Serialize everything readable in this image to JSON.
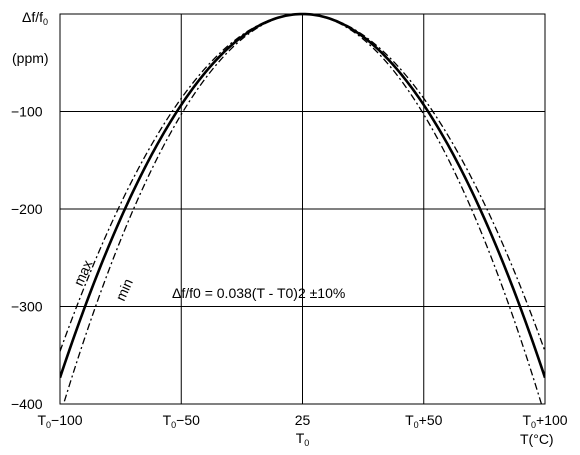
{
  "chart_data": {
    "type": "line",
    "title": "",
    "ylabel_top": "Δf/f",
    "ylabel_top_sub": "0",
    "ylabel_unit": "(ppm)",
    "xlabel": "T(°C)",
    "xlim": [
      -100,
      100
    ],
    "ylim": [
      -400,
      0
    ],
    "grid": true,
    "y_ticks": [
      {
        "value": -100,
        "label": "−100"
      },
      {
        "value": -200,
        "label": "−200"
      },
      {
        "value": -300,
        "label": "−300"
      },
      {
        "value": -400,
        "label": "−400"
      }
    ],
    "x_ticks": [
      {
        "value": -100,
        "main": "T",
        "sub": "0",
        "suffix": "−100"
      },
      {
        "value": -50,
        "main": "T",
        "sub": "0",
        "suffix": "−50"
      },
      {
        "value": 0,
        "main": "25",
        "sub": "",
        "suffix": ""
      },
      {
        "value": 50,
        "main": "T",
        "sub": "0",
        "suffix": "+50"
      },
      {
        "value": 100,
        "main": "T",
        "sub": "0",
        "suffix": "+100"
      }
    ],
    "x_center_sublabel": {
      "main": "T",
      "sub": "0"
    },
    "x": [
      -100,
      -75,
      -50,
      -25,
      0,
      25,
      50,
      75,
      100
    ],
    "series": [
      {
        "name": "max",
        "style": "dash-dot",
        "values": [
          -346,
          -195,
          -87,
          -22,
          0,
          -22,
          -87,
          -195,
          -346
        ]
      },
      {
        "name": "",
        "style": "solid",
        "values": [
          -373,
          -210,
          -93,
          -23,
          0,
          -23,
          -93,
          -210,
          -373
        ]
      },
      {
        "name": "min",
        "style": "dash-dot",
        "values": [
          -412,
          -232,
          -103,
          -26,
          0,
          -26,
          -103,
          -232,
          -412
        ]
      }
    ],
    "annotation": "Δf/f0 = 0.038(T - T0)2 ±10%"
  }
}
